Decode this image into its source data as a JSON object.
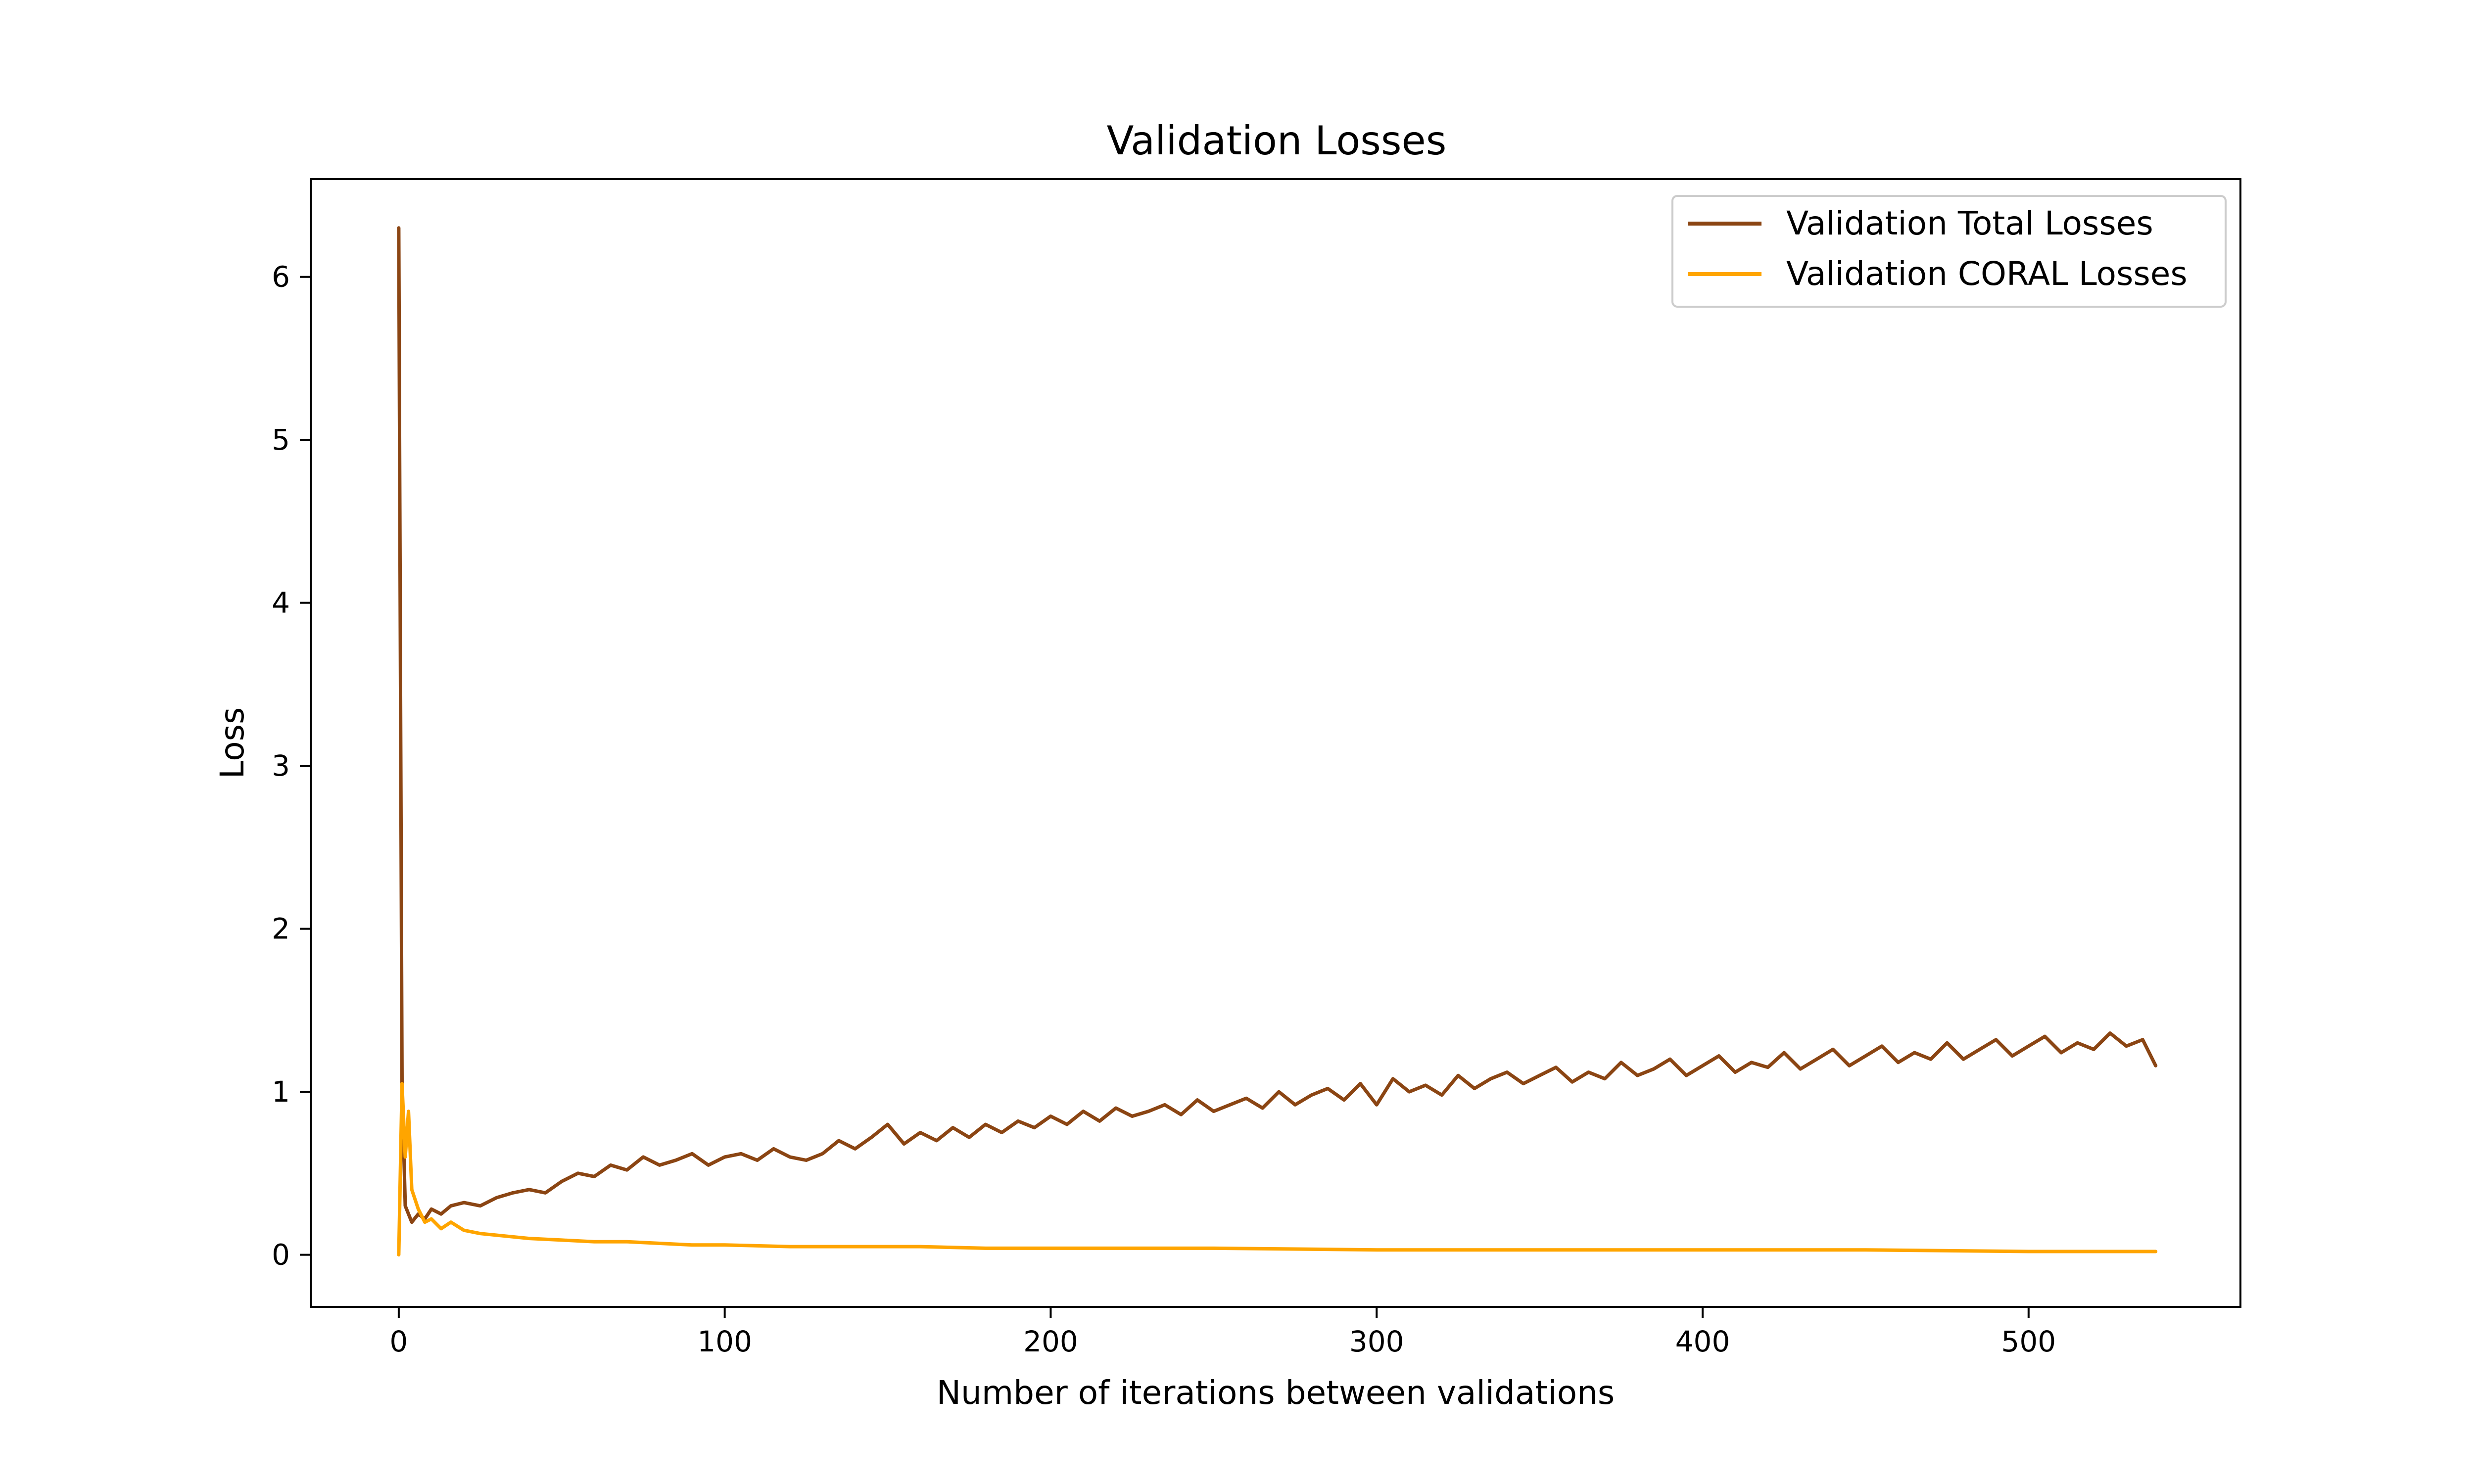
{
  "chart_data": {
    "type": "line",
    "title": "Validation Losses",
    "xlabel": "Number of iterations between validations",
    "ylabel": "Loss",
    "xlim": [
      -27,
      565
    ],
    "ylim": [
      -0.32,
      6.6
    ],
    "xticks": [
      0,
      100,
      200,
      300,
      400,
      500
    ],
    "yticks": [
      0,
      1,
      2,
      3,
      4,
      5,
      6
    ],
    "grid": false,
    "legend_position": "top-right",
    "colors": {
      "total": "#8B4513",
      "coral": "#FFA500",
      "axes": "#000000"
    },
    "series": [
      {
        "name": "Validation Total Losses",
        "color": "#8B4513",
        "x": [
          0,
          1,
          2,
          4,
          6,
          8,
          10,
          13,
          16,
          20,
          25,
          30,
          35,
          40,
          45,
          50,
          55,
          60,
          65,
          70,
          75,
          80,
          85,
          90,
          95,
          100,
          105,
          110,
          115,
          120,
          125,
          130,
          135,
          140,
          145,
          150,
          155,
          160,
          165,
          170,
          175,
          180,
          185,
          190,
          195,
          200,
          205,
          210,
          215,
          220,
          225,
          230,
          235,
          240,
          245,
          250,
          255,
          260,
          265,
          270,
          275,
          280,
          285,
          290,
          295,
          300,
          305,
          310,
          315,
          320,
          325,
          330,
          335,
          340,
          345,
          350,
          355,
          360,
          365,
          370,
          375,
          380,
          385,
          390,
          395,
          400,
          405,
          410,
          415,
          420,
          425,
          430,
          435,
          440,
          445,
          450,
          455,
          460,
          465,
          470,
          475,
          480,
          485,
          490,
          495,
          500,
          505,
          510,
          515,
          520,
          525,
          530,
          535,
          539
        ],
        "y": [
          6.3,
          1.05,
          0.3,
          0.2,
          0.25,
          0.22,
          0.28,
          0.25,
          0.3,
          0.32,
          0.3,
          0.35,
          0.38,
          0.4,
          0.38,
          0.45,
          0.5,
          0.48,
          0.55,
          0.52,
          0.6,
          0.55,
          0.58,
          0.62,
          0.55,
          0.6,
          0.62,
          0.58,
          0.65,
          0.6,
          0.58,
          0.62,
          0.7,
          0.65,
          0.72,
          0.8,
          0.68,
          0.75,
          0.7,
          0.78,
          0.72,
          0.8,
          0.75,
          0.82,
          0.78,
          0.85,
          0.8,
          0.88,
          0.82,
          0.9,
          0.85,
          0.88,
          0.92,
          0.86,
          0.95,
          0.88,
          0.92,
          0.96,
          0.9,
          1.0,
          0.92,
          0.98,
          1.02,
          0.95,
          1.05,
          0.92,
          1.08,
          1.0,
          1.04,
          0.98,
          1.1,
          1.02,
          1.08,
          1.12,
          1.05,
          1.1,
          1.15,
          1.06,
          1.12,
          1.08,
          1.18,
          1.1,
          1.14,
          1.2,
          1.1,
          1.16,
          1.22,
          1.12,
          1.18,
          1.15,
          1.24,
          1.14,
          1.2,
          1.26,
          1.16,
          1.22,
          1.28,
          1.18,
          1.24,
          1.2,
          1.3,
          1.2,
          1.26,
          1.32,
          1.22,
          1.28,
          1.34,
          1.24,
          1.3,
          1.26,
          1.36,
          1.28,
          1.32,
          1.16
        ]
      },
      {
        "name": "Validation CORAL Losses",
        "color": "#FFA500",
        "x": [
          0,
          1,
          2,
          3,
          4,
          6,
          8,
          10,
          13,
          16,
          20,
          25,
          30,
          40,
          50,
          60,
          70,
          80,
          90,
          100,
          120,
          140,
          160,
          180,
          200,
          250,
          300,
          350,
          400,
          450,
          500,
          539
        ],
        "y": [
          0.0,
          1.05,
          0.6,
          0.88,
          0.4,
          0.28,
          0.2,
          0.22,
          0.16,
          0.2,
          0.15,
          0.13,
          0.12,
          0.1,
          0.09,
          0.08,
          0.08,
          0.07,
          0.06,
          0.06,
          0.05,
          0.05,
          0.05,
          0.04,
          0.04,
          0.04,
          0.03,
          0.03,
          0.03,
          0.03,
          0.02,
          0.02
        ]
      }
    ]
  }
}
